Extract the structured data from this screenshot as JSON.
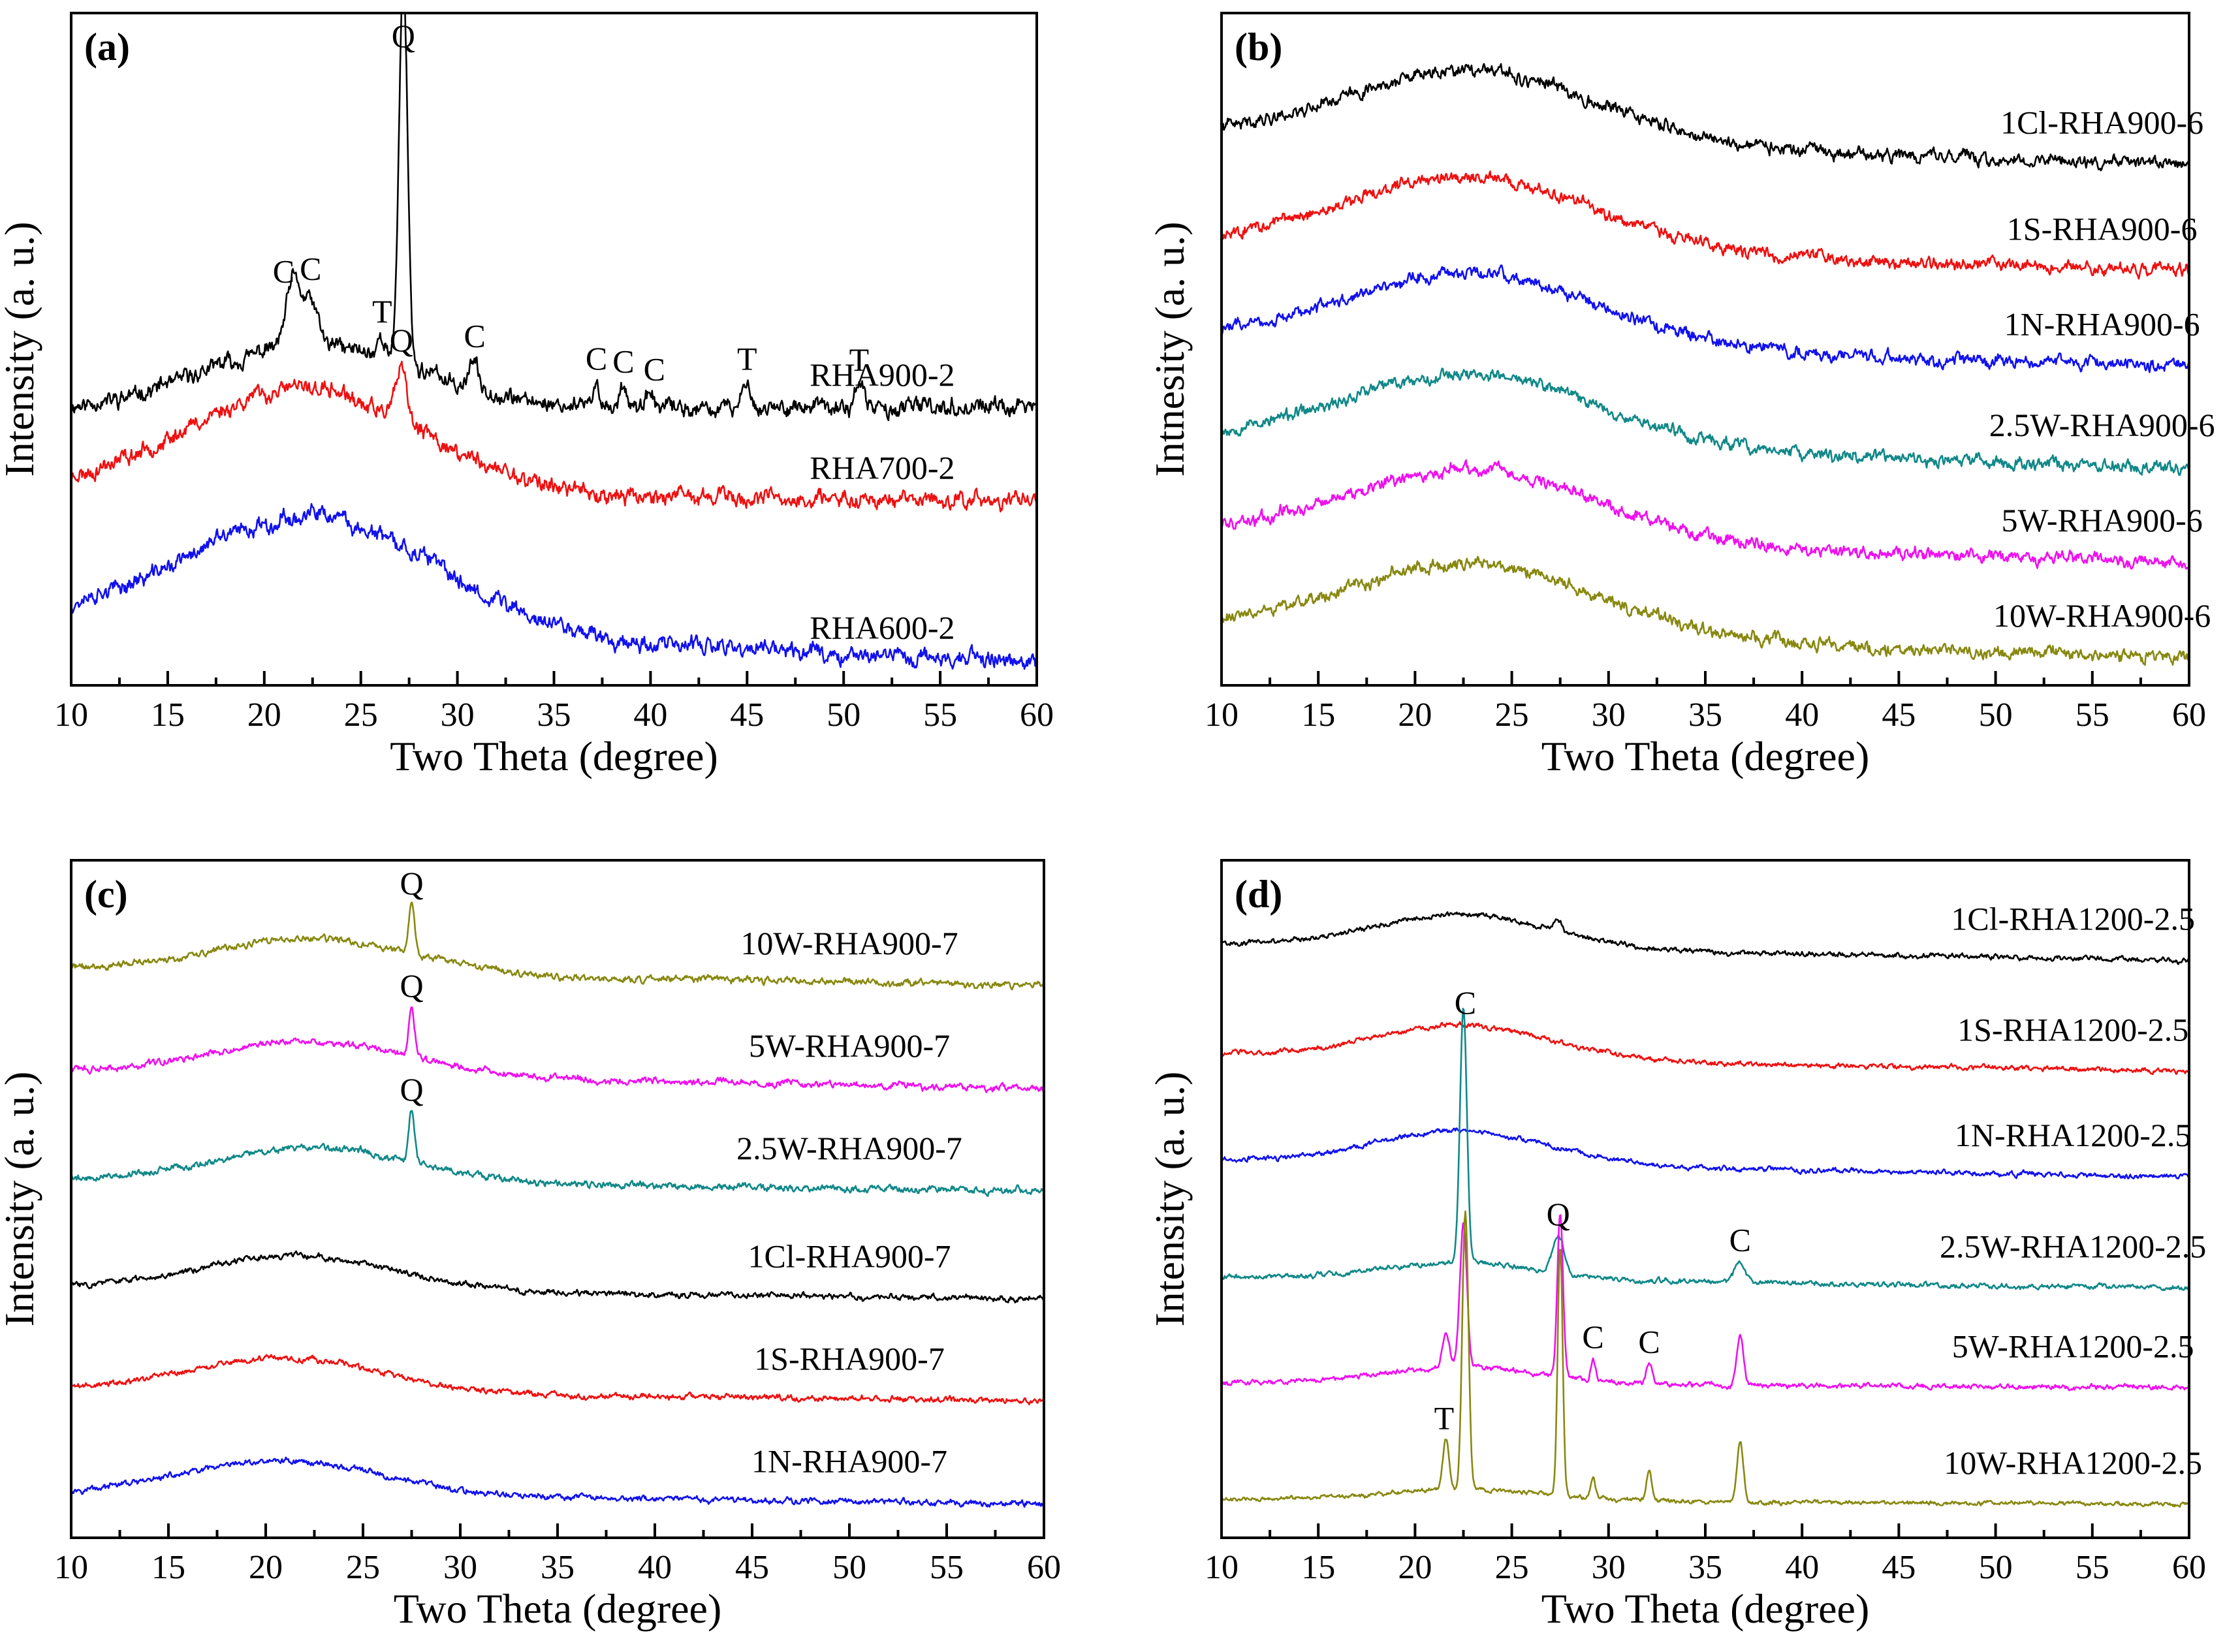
{
  "chart_data": [
    {
      "type": "line",
      "panel_label": "(a)",
      "xlabel": "Two Theta (degree)",
      "ylabel": "Intensity (a. u.)",
      "xlim": [
        10,
        60
      ],
      "x_ticks": [
        "10",
        "15",
        "20",
        "25",
        "30",
        "35",
        "40",
        "45",
        "50",
        "55",
        "60"
      ],
      "series": [
        {
          "name": "RHA900-2",
          "color": "#000000",
          "baseline": 2.0,
          "end_level": 2.05,
          "hump": 1.6,
          "hump_center": 22.5,
          "hump_width": 5.5,
          "noise": 0.28,
          "seed": 11,
          "peaks": [
            [
              21.5,
              1.6,
              0.35
            ],
            [
              22.4,
              1.1,
              0.35
            ],
            [
              26.1,
              0.55,
              0.18
            ],
            [
              27.2,
              9.6,
              0.22
            ],
            [
              30.8,
              0.7,
              0.25
            ],
            [
              37.2,
              0.45,
              0.2
            ],
            [
              38.6,
              0.6,
              0.2
            ],
            [
              40.0,
              0.35,
              0.2
            ],
            [
              45.0,
              0.75,
              0.2
            ],
            [
              50.8,
              0.7,
              0.2
            ]
          ]
        },
        {
          "name": "RHA700-2",
          "color": "#ee1111",
          "baseline": 0.0,
          "end_level": -0.25,
          "hump": 2.6,
          "hump_center": 22.0,
          "hump_width": 6.0,
          "noise": 0.28,
          "seed": 23,
          "peaks": [
            [
              27.1,
              1.3,
              0.28
            ]
          ]
        },
        {
          "name": "RHA600-2",
          "color": "#1111ee",
          "baseline": -3.2,
          "end_level": -4.2,
          "hump": 2.8,
          "hump_center": 22.5,
          "hump_width": 6.5,
          "noise": 0.28,
          "seed": 37,
          "peaks": []
        }
      ],
      "annotations": [
        {
          "text": "Q",
          "x": 27.2,
          "series": "RHA900-2"
        },
        {
          "text": "C",
          "x": 21.0,
          "series": "RHA900-2"
        },
        {
          "text": "C",
          "x": 22.4,
          "series": "RHA900-2"
        },
        {
          "text": "T",
          "x": 26.1,
          "series": "RHA900-2"
        },
        {
          "text": "C",
          "x": 30.9,
          "series": "RHA900-2"
        },
        {
          "text": "C",
          "x": 37.2,
          "series": "RHA900-2"
        },
        {
          "text": "C",
          "x": 38.6,
          "series": "RHA900-2"
        },
        {
          "text": "C",
          "x": 40.2,
          "series": "RHA900-2"
        },
        {
          "text": "T",
          "x": 45.0,
          "series": "RHA900-2"
        },
        {
          "text": "T",
          "x": 50.8,
          "series": "RHA900-2"
        },
        {
          "text": "Q",
          "x": 27.1,
          "series": "RHA700-2"
        }
      ]
    },
    {
      "type": "line",
      "panel_label": "(b)",
      "xlabel": "Two Theta (degree)",
      "ylabel": "Intnesity (a. u.)",
      "xlim": [
        10,
        60
      ],
      "x_ticks": [
        "10",
        "15",
        "20",
        "25",
        "30",
        "35",
        "40",
        "45",
        "50",
        "55",
        "60"
      ],
      "series": [
        {
          "name": "1Cl-RHA900-6",
          "color": "#000000",
          "baseline": 8.0,
          "end_level": 7.5,
          "hump": 1.3,
          "hump_center": 23.0,
          "hump_width": 6.5,
          "noise": 0.15,
          "seed": 41,
          "peaks": []
        },
        {
          "name": "1S-RHA900-6",
          "color": "#ee1111",
          "baseline": 6.1,
          "end_level": 5.6,
          "hump": 1.3,
          "hump_center": 23.0,
          "hump_width": 6.5,
          "noise": 0.15,
          "seed": 43,
          "peaks": []
        },
        {
          "name": "1N-RHA900-6",
          "color": "#1111ee",
          "baseline": 4.4,
          "end_level": 3.9,
          "hump": 1.3,
          "hump_center": 23.0,
          "hump_width": 6.5,
          "noise": 0.15,
          "seed": 47,
          "peaks": []
        },
        {
          "name": "2.5W-RHA900-6",
          "color": "#118888",
          "baseline": 2.6,
          "end_level": 2.1,
          "hump": 1.3,
          "hump_center": 23.0,
          "hump_width": 6.5,
          "noise": 0.15,
          "seed": 53,
          "peaks": []
        },
        {
          "name": "5W-RHA900-6",
          "color": "#ee11ee",
          "baseline": 0.9,
          "end_level": 0.4,
          "hump": 1.3,
          "hump_center": 23.0,
          "hump_width": 6.5,
          "noise": 0.15,
          "seed": 59,
          "peaks": []
        },
        {
          "name": "10W-RHA900-6",
          "color": "#888811",
          "baseline": -0.8,
          "end_level": -1.3,
          "hump": 1.3,
          "hump_center": 23.0,
          "hump_width": 6.5,
          "noise": 0.15,
          "seed": 61,
          "peaks": []
        }
      ],
      "annotations": []
    },
    {
      "type": "line",
      "panel_label": "(c)",
      "xlabel": "Two Theta (degree)",
      "ylabel": "Intensity (a. u.)",
      "xlim": [
        10,
        60
      ],
      "x_ticks": [
        "10",
        "15",
        "20",
        "25",
        "30",
        "35",
        "40",
        "45",
        "50",
        "55",
        "60"
      ],
      "series": [
        {
          "name": "10W-RHA900-7",
          "color": "#888811",
          "baseline": 8.2,
          "end_level": 7.9,
          "hump": 0.6,
          "hump_center": 22.5,
          "hump_width": 5.0,
          "noise": 0.08,
          "seed": 71,
          "peaks": [
            [
              27.5,
              0.9,
              0.15
            ]
          ]
        },
        {
          "name": "5W-RHA900-7",
          "color": "#ee11ee",
          "baseline": 6.4,
          "end_level": 6.1,
          "hump": 0.6,
          "hump_center": 22.5,
          "hump_width": 5.0,
          "noise": 0.08,
          "seed": 73,
          "peaks": [
            [
              27.5,
              0.8,
              0.15
            ]
          ]
        },
        {
          "name": "2.5W-RHA900-7",
          "color": "#118888",
          "baseline": 4.5,
          "end_level": 4.3,
          "hump": 0.6,
          "hump_center": 22.5,
          "hump_width": 5.0,
          "noise": 0.08,
          "seed": 79,
          "peaks": [
            [
              27.5,
              0.9,
              0.15
            ]
          ]
        },
        {
          "name": "1Cl-RHA900-7",
          "color": "#000000",
          "baseline": 2.6,
          "end_level": 2.4,
          "hump": 0.6,
          "hump_center": 21.5,
          "hump_width": 5.0,
          "noise": 0.07,
          "seed": 83,
          "peaks": []
        },
        {
          "name": "1S-RHA900-7",
          "color": "#ee1111",
          "baseline": 0.8,
          "end_level": 0.6,
          "hump": 0.6,
          "hump_center": 21.0,
          "hump_width": 5.0,
          "noise": 0.07,
          "seed": 89,
          "peaks": []
        },
        {
          "name": "1N-RHA900-7",
          "color": "#1111ee",
          "baseline": -1.0,
          "end_level": -1.2,
          "hump": 0.6,
          "hump_center": 21.0,
          "hump_width": 5.0,
          "noise": 0.07,
          "seed": 97,
          "peaks": []
        }
      ],
      "annotations": [
        {
          "text": "Q",
          "x": 27.5,
          "series": "10W-RHA900-7"
        },
        {
          "text": "Q",
          "x": 27.5,
          "series": "5W-RHA900-7"
        },
        {
          "text": "Q",
          "x": 27.5,
          "series": "2.5W-RHA900-7"
        }
      ]
    },
    {
      "type": "line",
      "panel_label": "(d)",
      "xlabel": "Two Theta (degree)",
      "ylabel": "Intensity (a. u.)",
      "xlim": [
        10,
        60
      ],
      "x_ticks": [
        "10",
        "15",
        "20",
        "25",
        "30",
        "35",
        "40",
        "45",
        "50",
        "55",
        "60"
      ],
      "series": [
        {
          "name": "1Cl-RHA1200-2.5",
          "color": "#000000",
          "baseline": 8.6,
          "end_level": 8.3,
          "hump": 0.6,
          "hump_center": 22.5,
          "hump_width": 4.5,
          "noise": 0.06,
          "seed": 101,
          "peaks": [
            [
              27.4,
              0.2,
              0.2
            ]
          ]
        },
        {
          "name": "1S-RHA1200-2.5",
          "color": "#ee1111",
          "baseline": 6.6,
          "end_level": 6.3,
          "hump": 0.6,
          "hump_center": 22.5,
          "hump_width": 4.5,
          "noise": 0.06,
          "seed": 103,
          "peaks": []
        },
        {
          "name": "1N-RHA1200-2.5",
          "color": "#1111ee",
          "baseline": 4.7,
          "end_level": 4.4,
          "hump": 0.6,
          "hump_center": 22.5,
          "hump_width": 4.5,
          "noise": 0.06,
          "seed": 107,
          "peaks": []
        },
        {
          "name": "2.5W-RHA1200-2.5",
          "color": "#118888",
          "baseline": 2.6,
          "end_level": 2.4,
          "hump": 0.3,
          "hump_center": 22.5,
          "hump_width": 4.0,
          "noise": 0.06,
          "seed": 109,
          "peaks": [
            [
              22.5,
              4.6,
              0.18
            ],
            [
              27.4,
              0.7,
              0.3
            ],
            [
              36.8,
              0.35,
              0.3
            ]
          ]
        },
        {
          "name": "5W-RHA1200-2.5",
          "color": "#ee11ee",
          "baseline": 0.7,
          "end_level": 0.6,
          "hump": 0.3,
          "hump_center": 22.5,
          "hump_width": 4.0,
          "noise": 0.06,
          "seed": 113,
          "peaks": [
            [
              21.6,
              0.6,
              0.18
            ],
            [
              22.5,
              2.6,
              0.18
            ],
            [
              27.5,
              2.9,
              0.15
            ],
            [
              29.2,
              0.35,
              0.12
            ],
            [
              32.1,
              0.4,
              0.14
            ],
            [
              36.8,
              0.9,
              0.18
            ]
          ]
        },
        {
          "name": "10W-RHA1200-2.5",
          "color": "#888811",
          "baseline": -1.4,
          "end_level": -1.5,
          "hump": 0.2,
          "hump_center": 22.5,
          "hump_width": 4.0,
          "noise": 0.05,
          "seed": 127,
          "peaks": [
            [
              21.6,
              0.9,
              0.16
            ],
            [
              22.6,
              5.0,
              0.16
            ],
            [
              27.5,
              4.5,
              0.13
            ],
            [
              29.2,
              0.4,
              0.12
            ],
            [
              32.1,
              0.55,
              0.13
            ],
            [
              36.8,
              1.1,
              0.16
            ]
          ]
        }
      ],
      "annotations": [
        {
          "text": "C",
          "x": 22.6,
          "series": "1S-RHA1200-2.5"
        },
        {
          "text": "Q",
          "x": 27.4,
          "series": "2.5W-RHA1200-2.5"
        },
        {
          "text": "C",
          "x": 36.8,
          "series": "2.5W-RHA1200-2.5"
        },
        {
          "text": "C",
          "x": 29.2,
          "series": "5W-RHA1200-2.5"
        },
        {
          "text": "C",
          "x": 32.1,
          "series": "5W-RHA1200-2.5"
        },
        {
          "text": "T",
          "x": 21.5,
          "series": "10W-RHA1200-2.5"
        }
      ]
    }
  ]
}
